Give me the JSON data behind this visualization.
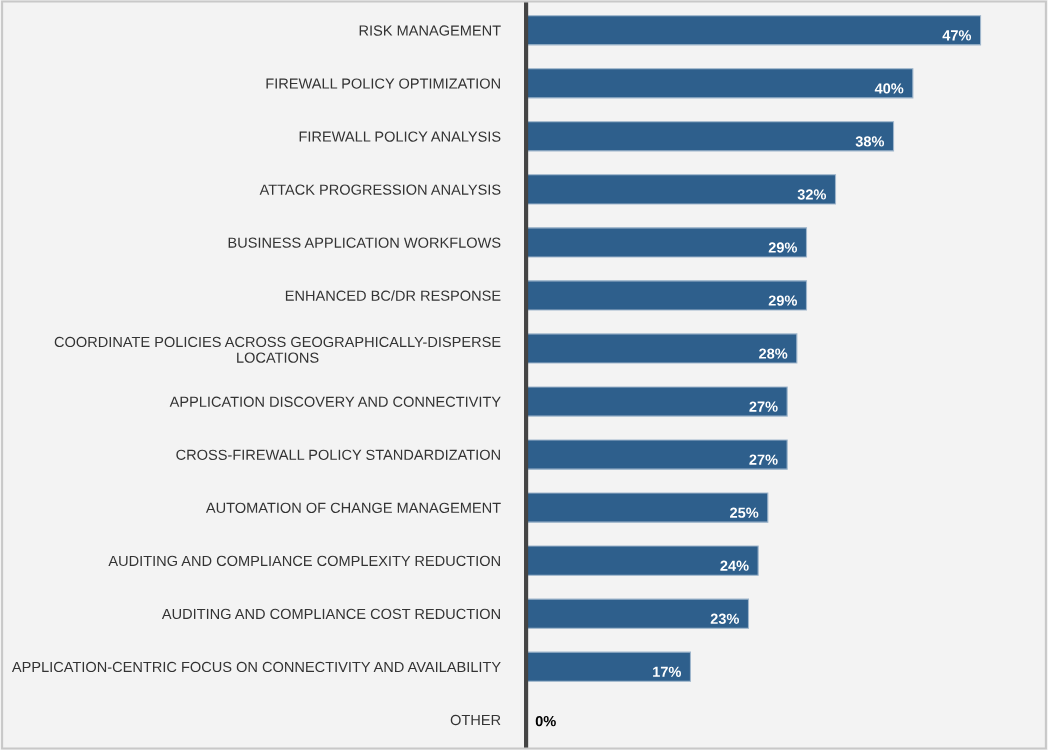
{
  "chart_data": {
    "type": "bar",
    "orientation": "horizontal",
    "categories": [
      "RISK MANAGEMENT",
      "FIREWALL POLICY OPTIMIZATION",
      "FIREWALL POLICY ANALYSIS",
      "ATTACK PROGRESSION ANALYSIS",
      "BUSINESS APPLICATION WORKFLOWS",
      "ENHANCED BC/DR RESPONSE",
      "COORDINATE POLICIES ACROSS GEOGRAPHICALLY-DISPERSE\nLOCATIONS",
      "APPLICATION DISCOVERY AND CONNECTIVITY",
      "CROSS-FIREWALL POLICY STANDARDIZATION",
      "AUTOMATION OF CHANGE MANAGEMENT",
      "AUDITING AND COMPLIANCE COMPLEXITY REDUCTION",
      "AUDITING AND COMPLIANCE COST REDUCTION",
      "APPLICATION-CENTRIC FOCUS ON CONNECTIVITY AND AVAILABILITY",
      "OTHER"
    ],
    "values": [
      47,
      40,
      38,
      32,
      29,
      29,
      28,
      27,
      27,
      25,
      24,
      23,
      17,
      0
    ],
    "value_labels": [
      "47%",
      "40%",
      "38%",
      "32%",
      "29%",
      "29%",
      "28%",
      "27%",
      "27%",
      "25%",
      "24%",
      "23%",
      "17%",
      "0%"
    ],
    "color": "#2e5f8c",
    "grid": false,
    "legend": false
  }
}
